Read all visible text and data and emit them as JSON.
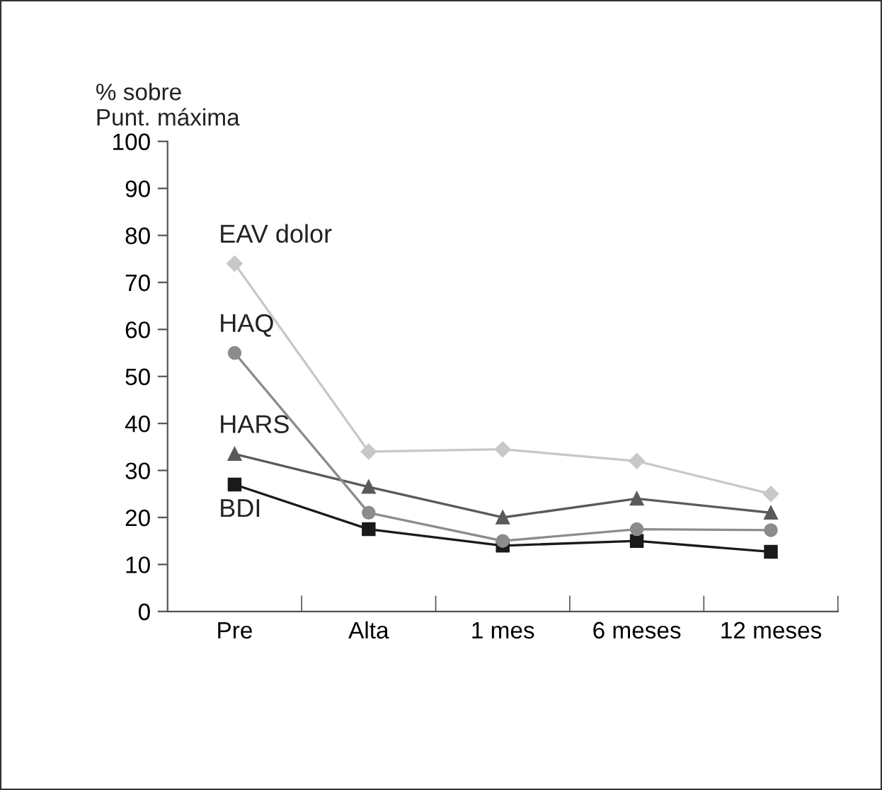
{
  "chart_data": {
    "type": "line",
    "ylabel": "% sobre\nPunt. máxima",
    "categories": [
      "Pre",
      "Alta",
      "1 mes",
      "6 meses",
      "12 meses"
    ],
    "series": [
      {
        "name": "EAV dolor",
        "color": "#c8c8c8",
        "marker": "diamond",
        "values": [
          74,
          34,
          34.5,
          32,
          25
        ]
      },
      {
        "name": "HAQ",
        "color": "#8c8c8c",
        "marker": "circle",
        "values": [
          55,
          21,
          15,
          17.5,
          17.3
        ]
      },
      {
        "name": "HARS",
        "color": "#5a5a5a",
        "marker": "triangle",
        "values": [
          33.5,
          26.5,
          20,
          24,
          21
        ]
      },
      {
        "name": "BDI",
        "color": "#1a1a1a",
        "marker": "square",
        "values": [
          27,
          17.5,
          14,
          15,
          12.7
        ]
      }
    ],
    "ylim": [
      0,
      100
    ],
    "yticks": [
      0,
      10,
      20,
      30,
      40,
      50,
      60,
      70,
      80,
      90,
      100
    ],
    "grid": false,
    "legend": false,
    "line_style": "solid"
  }
}
